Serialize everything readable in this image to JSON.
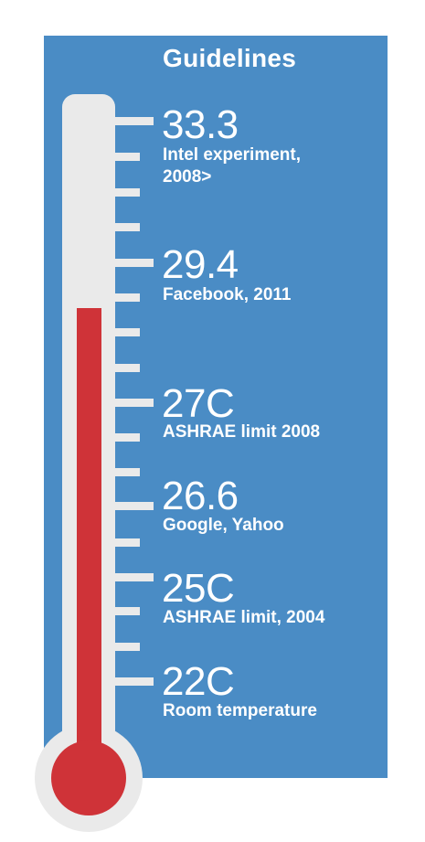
{
  "title": "Guidelines",
  "colors": {
    "panel": "#4a8cc5",
    "thermometer": "#eaeaea",
    "mercury": "#cf3338"
  },
  "guidelines": [
    {
      "value": "33.3",
      "label_line1": "Intel experiment,",
      "label_line2": "2008>"
    },
    {
      "value": "29.4",
      "label_line1": "Facebook, 2011"
    },
    {
      "value": "27C",
      "label_line1": "ASHRAE limit 2008"
    },
    {
      "value": "26.6",
      "label_line1": "Google, Yahoo"
    },
    {
      "value": "25C",
      "label_line1": "ASHRAE limit, 2004"
    },
    {
      "value": "22C",
      "label_line1": "Room temperature"
    }
  ]
}
